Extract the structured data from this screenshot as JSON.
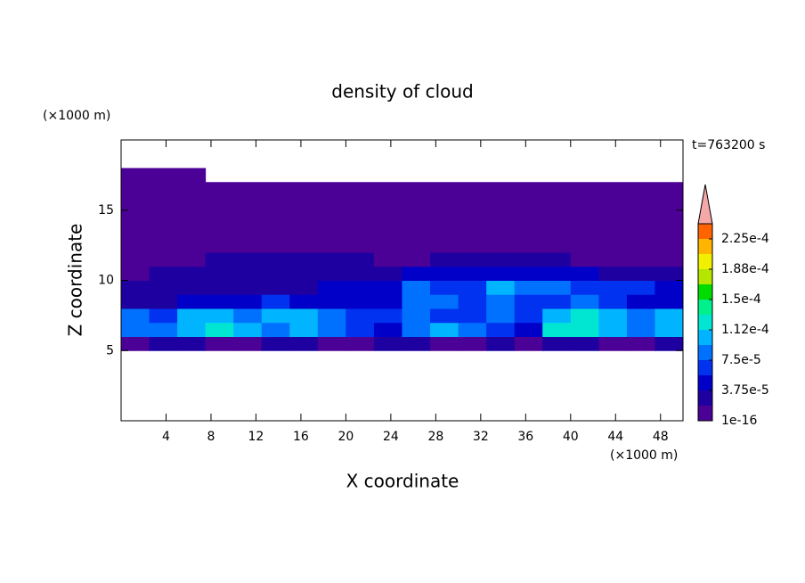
{
  "chart_data": {
    "type": "contour",
    "title": "density of cloud",
    "x_label": "X coordinate",
    "y_label": "Z coordinate",
    "x_unit": "(×1000 m)",
    "y_unit": "(×1000 m)",
    "annotation": "t=763200 s",
    "xlim": [
      0,
      50
    ],
    "ylim": [
      0,
      20
    ],
    "xticks": [
      4,
      8,
      12,
      16,
      20,
      24,
      28,
      32,
      36,
      40,
      44,
      48
    ],
    "yticks": [
      5,
      10,
      15
    ],
    "field": {
      "x": [
        1.25,
        3.75,
        6.25,
        8.75,
        11.25,
        13.75,
        16.25,
        18.75,
        21.25,
        23.75,
        26.25,
        28.75,
        31.25,
        33.75,
        36.25,
        38.75,
        41.25,
        43.75,
        46.25,
        48.75
      ],
      "z": [
        5.5,
        6.5,
        7.5,
        8.5,
        9.5,
        10.5,
        11.5,
        12.5,
        13.5,
        14.5,
        15.5,
        16.5,
        17.5
      ],
      "values": [
        [
          1e-06,
          2.5e-05,
          2.5e-05,
          1e-06,
          1e-06,
          2.5e-05,
          2.5e-05,
          1e-06,
          1e-06,
          2.5e-05,
          2.5e-05,
          1e-06,
          1e-06,
          2.5e-05,
          1e-06,
          2.5e-05,
          2.5e-05,
          1e-06,
          1e-06,
          2.5e-05
        ],
        [
          8.5e-05,
          8.5e-05,
          0.0001,
          0.00012,
          0.0001,
          8.5e-05,
          0.0001,
          8.5e-05,
          6.5e-05,
          4.5e-05,
          8.5e-05,
          0.0001,
          8.5e-05,
          6.5e-05,
          4.5e-05,
          0.00012,
          0.00012,
          0.0001,
          8.5e-05,
          0.0001
        ],
        [
          8.5e-05,
          6.5e-05,
          0.0001,
          0.0001,
          8.5e-05,
          0.0001,
          0.0001,
          8.5e-05,
          6.5e-05,
          6.5e-05,
          8.5e-05,
          6.5e-05,
          6.5e-05,
          8.5e-05,
          6.5e-05,
          0.0001,
          0.00012,
          0.0001,
          8.5e-05,
          0.0001
        ],
        [
          2.5e-05,
          2.5e-05,
          4.5e-05,
          4.5e-05,
          4.5e-05,
          6.5e-05,
          4.5e-05,
          4.5e-05,
          4.5e-05,
          4.5e-05,
          8.5e-05,
          8.5e-05,
          6.5e-05,
          8.5e-05,
          6.5e-05,
          6.5e-05,
          8.5e-05,
          6.5e-05,
          4.5e-05,
          4.5e-05
        ],
        [
          2.5e-05,
          2.5e-05,
          2.5e-05,
          2.5e-05,
          2.5e-05,
          2.5e-05,
          2.5e-05,
          4.5e-05,
          4.5e-05,
          4.5e-05,
          8.5e-05,
          6.5e-05,
          6.5e-05,
          0.0001,
          8.5e-05,
          8.5e-05,
          6.5e-05,
          6.5e-05,
          6.5e-05,
          4.5e-05
        ],
        [
          1e-06,
          2.5e-05,
          2.5e-05,
          2.5e-05,
          2.5e-05,
          2.5e-05,
          2.5e-05,
          2.5e-05,
          2.5e-05,
          2.5e-05,
          4.5e-05,
          4.5e-05,
          4.5e-05,
          4.5e-05,
          4.5e-05,
          4.5e-05,
          4.5e-05,
          2.5e-05,
          2.5e-05,
          2.5e-05
        ],
        [
          1e-06,
          1e-06,
          1e-06,
          2.5e-05,
          2.5e-05,
          2.5e-05,
          2.5e-05,
          2.5e-05,
          2.5e-05,
          1e-06,
          1e-06,
          2.5e-05,
          2.5e-05,
          2.5e-05,
          2.5e-05,
          2.5e-05,
          1e-06,
          1e-06,
          1e-06,
          1e-06
        ],
        [
          1e-06,
          1e-06,
          1e-06,
          1e-06,
          1e-06,
          1e-06,
          1e-06,
          1e-06,
          1e-06,
          1e-06,
          1e-06,
          1e-06,
          1e-06,
          1e-06,
          1e-06,
          1e-06,
          1e-06,
          1e-06,
          1e-06,
          1e-06
        ],
        [
          1e-06,
          1e-06,
          1e-06,
          1e-06,
          1e-06,
          1e-06,
          1e-06,
          1e-06,
          1e-06,
          1e-06,
          1e-06,
          1e-06,
          1e-06,
          1e-06,
          1e-06,
          1e-06,
          1e-06,
          1e-06,
          1e-06,
          1e-06
        ],
        [
          1e-06,
          1e-06,
          1e-06,
          1e-06,
          1e-06,
          1e-06,
          1e-06,
          1e-06,
          1e-06,
          1e-06,
          1e-06,
          1e-06,
          1e-06,
          1e-06,
          1e-06,
          1e-06,
          1e-06,
          1e-06,
          1e-06,
          1e-06
        ],
        [
          1e-06,
          1e-06,
          1e-06,
          1e-06,
          1e-06,
          1e-06,
          1e-06,
          1e-06,
          1e-06,
          1e-06,
          1e-06,
          1e-06,
          1e-06,
          1e-06,
          1e-06,
          1e-06,
          1e-06,
          1e-06,
          1e-06,
          1e-06
        ],
        [
          1e-06,
          1e-06,
          1e-06,
          1e-06,
          1e-06,
          1e-06,
          1e-06,
          1e-06,
          1e-06,
          1e-06,
          1e-06,
          1e-06,
          1e-06,
          1e-06,
          1e-06,
          1e-06,
          1e-06,
          1e-06,
          1e-06,
          1e-06
        ],
        [
          1e-06,
          1e-06,
          1e-06,
          null,
          null,
          null,
          null,
          null,
          null,
          null,
          null,
          null,
          null,
          null,
          null,
          null,
          null,
          null,
          null,
          null
        ]
      ]
    },
    "colorbar": {
      "levels": [
        1e-16,
        1.875e-05,
        3.75e-05,
        5.625e-05,
        7.5e-05,
        9.375e-05,
        0.0001125,
        0.00013125,
        0.00015,
        0.00016875,
        0.0001875,
        0.00020625,
        0.000225,
        0.00024375
      ],
      "colors": [
        "#4b0096",
        "#1e00a0",
        "#0000c8",
        "#0032f0",
        "#0070ff",
        "#00b4ff",
        "#00e6d2",
        "#00f08c",
        "#00dc00",
        "#b4e600",
        "#f0f000",
        "#ffb400",
        "#ff6400"
      ],
      "extend_color": "#f4a8a8",
      "ticks": [
        {
          "value": 1e-16,
          "label": "1e-16"
        },
        {
          "value": 3.75e-05,
          "label": "3.75e-5"
        },
        {
          "value": 7.5e-05,
          "label": "7.5e-5"
        },
        {
          "value": 0.0001125,
          "label": "1.12e-4"
        },
        {
          "value": 0.00015,
          "label": "1.5e-4"
        },
        {
          "value": 0.0001875,
          "label": "1.88e-4"
        },
        {
          "value": 0.000225,
          "label": "2.25e-4"
        }
      ]
    }
  }
}
